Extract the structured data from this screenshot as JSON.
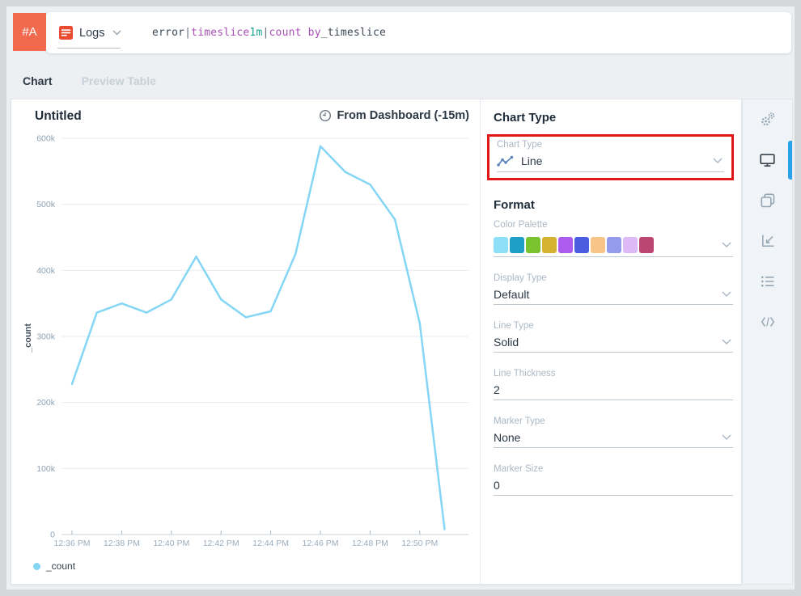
{
  "topbar": {
    "panel_badge": "#A",
    "source": {
      "label": "Logs"
    },
    "query_tokens": [
      {
        "text": "error ",
        "color": "#3c4854"
      },
      {
        "text": "| ",
        "color": "#5f6b77"
      },
      {
        "text": "timeslice ",
        "color": "#a94fb8"
      },
      {
        "text": "1m ",
        "color": "#1ba393"
      },
      {
        "text": "| ",
        "color": "#5f6b77"
      },
      {
        "text": "count by ",
        "color": "#a94fb8"
      },
      {
        "text": "_timeslice",
        "color": "#3c4854"
      }
    ]
  },
  "tabs": [
    {
      "label": "Chart",
      "active": true
    },
    {
      "label": "Preview Table",
      "active": false
    }
  ],
  "chart_panel": {
    "title": "Untitled",
    "time_range": "From Dashboard (-15m)",
    "legend": [
      {
        "label": "_count",
        "color": "#85d6f5"
      }
    ]
  },
  "chart_data": {
    "type": "line",
    "title": "Untitled",
    "xlabel": "",
    "ylabel": "_count",
    "x": [
      "12:36 PM",
      "12:37 PM",
      "12:38 PM",
      "12:39 PM",
      "12:40 PM",
      "12:41 PM",
      "12:42 PM",
      "12:43 PM",
      "12:44 PM",
      "12:45 PM",
      "12:46 PM",
      "12:47 PM",
      "12:48 PM",
      "12:49 PM",
      "12:50 PM",
      "12:51 PM"
    ],
    "x_tick_labels": [
      "12:36 PM",
      "12:38 PM",
      "12:40 PM",
      "12:42 PM",
      "12:44 PM",
      "12:46 PM",
      "12:48 PM",
      "12:50 PM"
    ],
    "series": [
      {
        "name": "_count",
        "color": "#85d6f5",
        "values": [
          228000,
          336000,
          350000,
          336000,
          356000,
          421000,
          356000,
          329000,
          338000,
          425000,
          588000,
          549000,
          530000,
          477000,
          320000,
          8000
        ]
      }
    ],
    "ylim": [
      0,
      600000
    ],
    "y_tick_labels": [
      "0",
      "100k",
      "200k",
      "300k",
      "400k",
      "500k",
      "600k"
    ],
    "grid": true,
    "legend_position": "bottom-left"
  },
  "settings_panel": {
    "chart_type_section_title": "Chart Type",
    "chart_type_field": {
      "label": "Chart Type",
      "value": "Line"
    },
    "format_section_title": "Format",
    "palette_field": {
      "label": "Color Palette",
      "colors": [
        "#8ee0f9",
        "#1d9fc8",
        "#79c32e",
        "#d5b22f",
        "#ae5cf0",
        "#4a5ce0",
        "#f9c488",
        "#959bec",
        "#ddbaf6",
        "#ba4671"
      ]
    },
    "fields": [
      {
        "label": "Display Type",
        "value": "Default",
        "dropdown": true
      },
      {
        "label": "Line Type",
        "value": "Solid",
        "dropdown": true
      },
      {
        "label": "Line Thickness",
        "value": "2",
        "dropdown": false
      },
      {
        "label": "Marker Type",
        "value": "None",
        "dropdown": true
      },
      {
        "label": "Marker Size",
        "value": "0",
        "dropdown": false
      }
    ]
  },
  "toolbar": {
    "icons": [
      {
        "name": "settings-gears-icon",
        "active": false
      },
      {
        "name": "display-monitor-icon",
        "active": true
      },
      {
        "name": "duplicate-icon",
        "active": false
      },
      {
        "name": "axes-chart-icon",
        "active": false
      },
      {
        "name": "list-icon",
        "active": false
      },
      {
        "name": "code-icon",
        "active": false
      }
    ]
  },
  "colors": {
    "accent_blue": "#2aa2e9",
    "badge_orange": "#f16a4d",
    "logs_icon_red": "#e94a30",
    "highlight_red": "#e41717",
    "line_series": "#85d6f5"
  }
}
